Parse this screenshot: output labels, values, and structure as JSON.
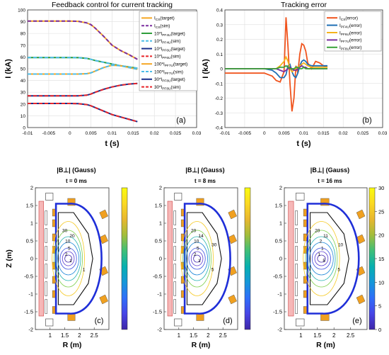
{
  "chart_data": [
    {
      "type": "line",
      "title": "Feedback control for current tracking",
      "xlabel": "t (s)",
      "ylabel": "I (kA)",
      "panel_label": "(a)",
      "xlim": [
        -0.01,
        0.03
      ],
      "ylim": [
        0,
        100
      ],
      "x_ticks": [
        "-0.01",
        "-0.005",
        "0",
        "0.005",
        "0.01",
        "0.015",
        "0.02",
        "0.025",
        "0.03"
      ],
      "y_ticks": [
        "0",
        "10",
        "20",
        "30",
        "40",
        "50",
        "60",
        "70",
        "80",
        "90",
        "100"
      ],
      "grid": true,
      "legend_position": "right",
      "x": [
        -0.01,
        0.0,
        0.002,
        0.004,
        0.005,
        0.006,
        0.008,
        0.01,
        0.012,
        0.014,
        0.016
      ],
      "series": [
        {
          "name": "I_CS (target)",
          "legend": [
            "I",
            "CS",
            "(target)",
            ""
          ],
          "color": "#f5a623",
          "dash": false,
          "values": [
            90.5,
            90.5,
            90.3,
            89.0,
            87.5,
            84.5,
            77.5,
            70.0,
            65.5,
            62.0,
            58.0
          ]
        },
        {
          "name": "I_CS (sim)",
          "legend": [
            "I",
            "CS",
            "(sim)",
            ""
          ],
          "color": "#7b2fa0",
          "dash": true,
          "values": [
            90.5,
            90.5,
            90.3,
            89.0,
            87.5,
            84.5,
            77.5,
            70.0,
            65.5,
            62.0,
            58.0
          ]
        },
        {
          "name": "10*I_PF4U (target)",
          "legend": [
            "10*I",
            "PF4U",
            "(target)",
            ""
          ],
          "color": "#2e9e3a",
          "dash": false,
          "values": [
            59.5,
            59.5,
            59.4,
            58.8,
            58.0,
            57.0,
            55.5,
            54.0,
            52.5,
            51.5,
            50.5
          ]
        },
        {
          "name": "10*I_PF4U (sim)",
          "legend": [
            "10*I",
            "PF4U",
            "(sim)",
            ""
          ],
          "color": "#4dbde8",
          "dash": true,
          "values": [
            59.5,
            59.5,
            59.4,
            58.8,
            58.0,
            57.0,
            55.5,
            54.0,
            52.5,
            51.5,
            50.5
          ]
        },
        {
          "name": "10*I_PF6U (target)",
          "legend": [
            "10*I",
            "PF6U",
            "(target)",
            ""
          ],
          "color": "#1a2f8c",
          "dash": false,
          "values": [
            27.0,
            27.0,
            27.0,
            27.5,
            28.5,
            30.0,
            32.5,
            34.5,
            36.0,
            37.0,
            37.5
          ]
        },
        {
          "name": "10*I_PF6U (sim)",
          "legend": [
            "10*I",
            "PF6U",
            "(sim)",
            ""
          ],
          "color": "#e8252a",
          "dash": true,
          "values": [
            27.0,
            27.0,
            27.0,
            27.5,
            28.5,
            30.0,
            32.5,
            34.5,
            36.0,
            37.0,
            37.5
          ]
        },
        {
          "name": "100*I_PF7U (target)",
          "legend": [
            "100*I",
            "PF7U",
            "(target)",
            ""
          ],
          "color": "#f5a623",
          "dash": false,
          "values": [
            45.5,
            45.5,
            45.5,
            45.8,
            46.5,
            48.0,
            51.0,
            53.0,
            52.5,
            51.0,
            49.5
          ]
        },
        {
          "name": "100*I_PF7U (sim)",
          "legend": [
            "100*I",
            "PF7U",
            "(sim)",
            ""
          ],
          "color": "#4dbde8",
          "dash": true,
          "values": [
            45.5,
            45.5,
            45.5,
            45.8,
            46.5,
            48.0,
            51.0,
            53.0,
            52.5,
            51.0,
            49.5
          ]
        },
        {
          "name": "30*I_PF8U (target)",
          "legend": [
            "30*I",
            "PF8U",
            "(target)",
            ""
          ],
          "color": "#1a2f8c",
          "dash": false,
          "values": [
            20.5,
            20.5,
            20.3,
            19.5,
            18.5,
            17.0,
            14.0,
            11.0,
            9.0,
            7.0,
            5.0
          ]
        },
        {
          "name": "30*I_PF8U (sim)",
          "legend": [
            "30*I",
            "PF8U",
            "(sim)",
            ""
          ],
          "color": "#e8252a",
          "dash": true,
          "values": [
            20.5,
            20.5,
            20.3,
            19.5,
            18.5,
            17.0,
            14.0,
            11.0,
            9.0,
            7.0,
            5.0
          ]
        }
      ]
    },
    {
      "type": "line",
      "title": "Tracking error",
      "xlabel": "t (s)",
      "ylabel": "I (kA)",
      "panel_label": "(b)",
      "xlim": [
        -0.01,
        0.03
      ],
      "ylim": [
        -0.4,
        0.4
      ],
      "x_ticks": [
        "-0.01",
        "-0.005",
        "0",
        "0.005",
        "0.01",
        "0.015",
        "0.02",
        "0.025",
        "0.03"
      ],
      "y_ticks": [
        "-0.4",
        "-0.3",
        "-0.2",
        "-0.1",
        "0",
        "0.1",
        "0.2",
        "0.3",
        "0.4"
      ],
      "grid": true,
      "legend_position": "top-right",
      "x": [
        -0.01,
        0.0,
        0.002,
        0.003,
        0.004,
        0.005,
        0.0055,
        0.006,
        0.0065,
        0.007,
        0.0075,
        0.008,
        0.0085,
        0.009,
        0.0095,
        0.01,
        0.0105,
        0.011,
        0.012,
        0.013,
        0.014,
        0.015,
        0.016
      ],
      "series": [
        {
          "name": "I_CS (error)",
          "legend": [
            "I",
            "CS",
            "(error)"
          ],
          "color": "#f0541e",
          "values": [
            -0.03,
            -0.03,
            -0.05,
            -0.08,
            -0.09,
            -0.02,
            0.35,
            0.15,
            -0.1,
            -0.29,
            -0.2,
            0.02,
            -0.03,
            0.1,
            0.17,
            0.16,
            0.12,
            0.04,
            0.0,
            0.05,
            0.04,
            0.02,
            0.01
          ]
        },
        {
          "name": "I_PF4U (error)",
          "legend": [
            "I",
            "PF4U",
            "(error)"
          ],
          "color": "#1f6fb5",
          "values": [
            0.0,
            0.0,
            -0.01,
            -0.03,
            -0.06,
            -0.06,
            -0.04,
            0.02,
            0.03,
            -0.02,
            -0.05,
            -0.06,
            -0.03,
            0.02,
            0.05,
            0.06,
            0.05,
            0.03,
            0.02,
            0.02,
            0.02,
            0.02,
            0.02
          ]
        },
        {
          "name": "I_PF6U (error)",
          "legend": [
            "I",
            "PF6U",
            "(error)"
          ],
          "color": "#f5b31b",
          "values": [
            0.0,
            0.0,
            0.0,
            0.0,
            0.02,
            0.05,
            0.08,
            0.05,
            0.0,
            -0.02,
            -0.01,
            0.0,
            0.01,
            0.02,
            0.03,
            0.04,
            0.03,
            0.02,
            0.01,
            0.01,
            0.01,
            0.01,
            0.01
          ]
        },
        {
          "name": "I_PF7U (error)",
          "legend": [
            "I",
            "PF7U",
            "(error)"
          ],
          "color": "#7b2fa0",
          "values": [
            0.0,
            0.0,
            0.0,
            0.0,
            -0.01,
            -0.02,
            -0.01,
            0.0,
            0.01,
            0.0,
            -0.01,
            -0.01,
            0.0,
            0.01,
            0.02,
            0.01,
            0.01,
            0.0,
            0.0,
            0.0,
            0.0,
            0.0,
            0.0
          ]
        },
        {
          "name": "I_PF8U (error)",
          "legend": [
            "I",
            "PF8U",
            "(error)"
          ],
          "color": "#3aa33a",
          "values": [
            0.0,
            0.0,
            0.0,
            0.0,
            0.01,
            0.01,
            0.02,
            0.01,
            0.0,
            0.0,
            0.0,
            0.01,
            0.01,
            0.0,
            0.0,
            0.01,
            0.0,
            0.0,
            0.0,
            0.0,
            0.0,
            0.0,
            0.0
          ]
        }
      ]
    },
    {
      "type": "heatmap",
      "title": "|B⊥| (Gauss)",
      "time_label": "t = 0 ms",
      "panel_label": "(c)",
      "xlabel": "R (m)",
      "ylabel": "Z (m)",
      "xlim": [
        0.5,
        3.0
      ],
      "ylim": [
        -2,
        2
      ],
      "x_ticks": [
        "1",
        "1.5",
        "2",
        "2.5"
      ],
      "y_ticks": [
        "-2",
        "-1.5",
        "-1",
        "-0.5",
        "0",
        "0.5",
        "1",
        "1.5",
        "2"
      ],
      "contour_labels": [
        "30",
        "20",
        "10",
        "5",
        "2",
        "1",
        "1"
      ],
      "colorbar": false
    },
    {
      "type": "heatmap",
      "title": "|B⊥| (Gauss)",
      "time_label": "t = 8 ms",
      "panel_label": "(d)",
      "xlabel": "R (m)",
      "ylabel": "",
      "xlim": [
        0.5,
        3.0
      ],
      "ylim": [
        -2,
        2
      ],
      "x_ticks": [
        "1",
        "1.5",
        "2",
        "2.5"
      ],
      "y_ticks": [
        "-2",
        "-1.5",
        "-1",
        "-0.5",
        "0",
        "0.5",
        "1",
        "1.5",
        "2"
      ],
      "contour_labels": [
        "20",
        "14",
        "10",
        "5",
        "2",
        "1",
        "5",
        "30"
      ],
      "colorbar": false
    },
    {
      "type": "heatmap",
      "title": "|B⊥| (Gauss)",
      "time_label": "t = 16 ms",
      "panel_label": "(e)",
      "xlabel": "R (m)",
      "ylabel": "",
      "xlim": [
        0.5,
        3.0
      ],
      "ylim": [
        -2,
        2
      ],
      "x_ticks": [
        "1",
        "1.5",
        "2",
        "2.5"
      ],
      "y_ticks": [
        "-2",
        "-1.5",
        "-1",
        "-0.5",
        "0",
        "0.5",
        "1",
        "1.5",
        "2"
      ],
      "contour_labels": [
        "20",
        "11",
        "2",
        "1",
        "1",
        "5",
        "5",
        "10"
      ],
      "colorbar": true,
      "colorbar_ticks": [
        "0",
        "5",
        "10",
        "15",
        "20",
        "25",
        "30"
      ],
      "colorbar_range": [
        0,
        30
      ],
      "colormap": [
        "#3e26a8",
        "#4745e6",
        "#2f6ef9",
        "#1597d9",
        "#06b0b0",
        "#3fbf78",
        "#a3bd3b",
        "#e8b72f",
        "#fbd922",
        "#f9fb0e"
      ]
    }
  ]
}
